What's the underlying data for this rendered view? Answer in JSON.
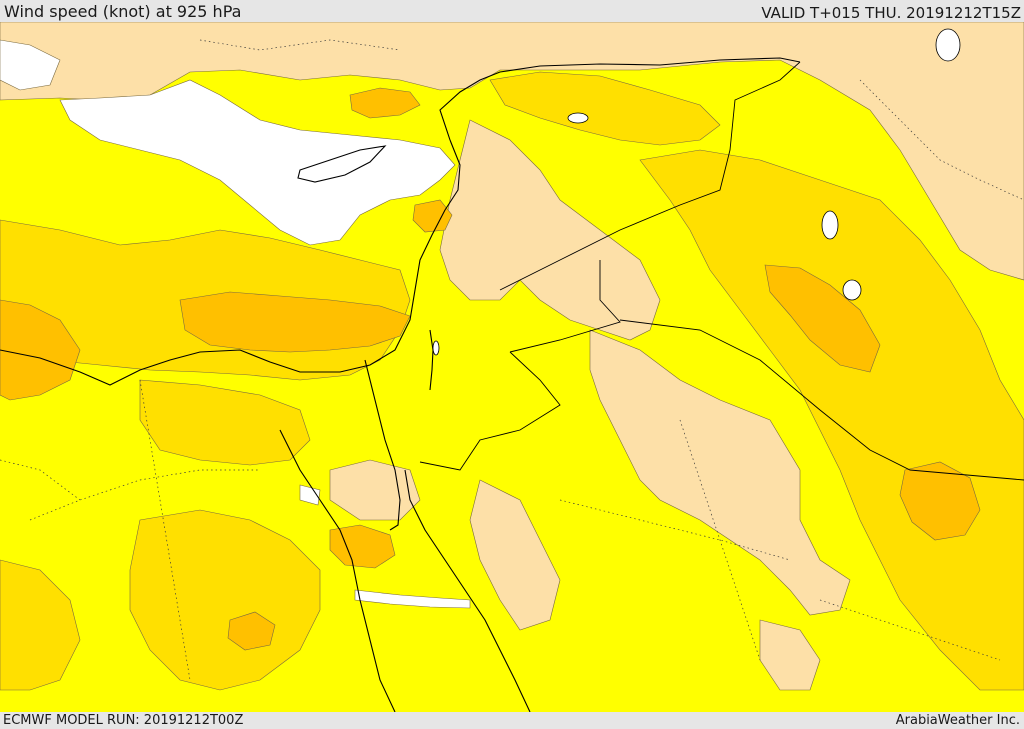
{
  "header": {
    "title": "Wind speed (knot) at 925 hPa",
    "valid": "VALID T+015 THU. 20191212T15Z"
  },
  "footer": {
    "model_run": "ECMWF MODEL RUN: 20191212T00Z",
    "credit": "ArabiaWeather Inc."
  },
  "map": {
    "field": "Wind speed (knot) at 925 hPa",
    "colors": {
      "calm": "#ffffff",
      "light": "#fde0a8",
      "yellow": "#ffff00",
      "gold": "#ffe000",
      "orange": "#ffc000",
      "coast": "#000000"
    }
  }
}
